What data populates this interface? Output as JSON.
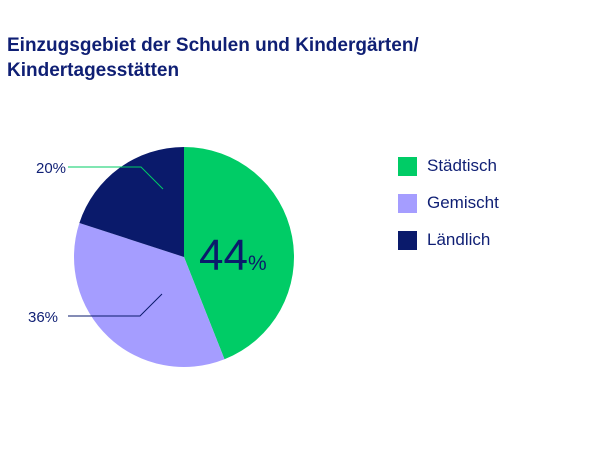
{
  "title_lines": [
    "Einzugsgebiet der Schulen und Kindergärten/",
    "Kindertagesstätten"
  ],
  "chart_data": {
    "type": "pie",
    "title": "Einzugsgebiet der Schulen und Kindergärten/ Kindertagesstätten",
    "slices": [
      {
        "name": "Städtisch",
        "value": 44,
        "label": "44",
        "color": "#00cc66"
      },
      {
        "name": "Gemischt",
        "value": 36,
        "label": "36%",
        "color": "#a59dff"
      },
      {
        "name": "Ländlich",
        "value": 20,
        "label": "20%",
        "color": "#0a1a6b"
      }
    ],
    "percent_sign": "%",
    "legend_placement": "right"
  }
}
